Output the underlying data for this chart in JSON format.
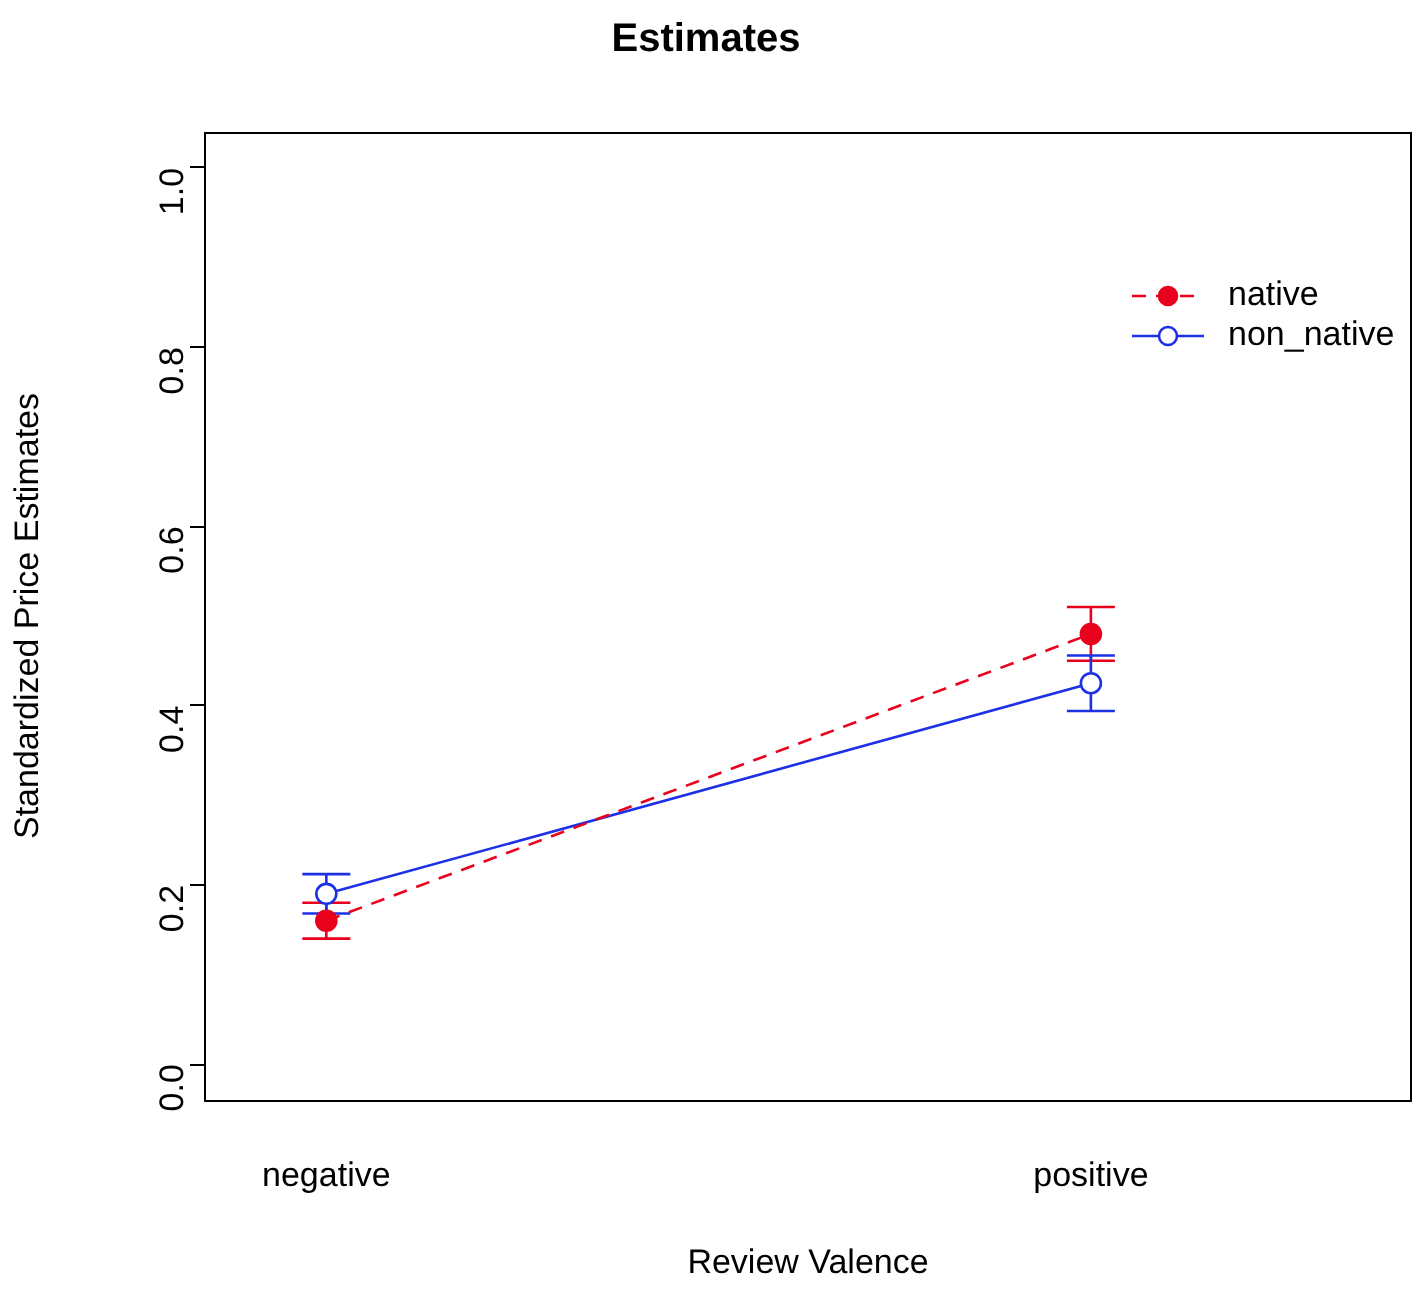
{
  "chart_data": {
    "type": "line",
    "title": "Estimates",
    "xlabel": "Review Valence",
    "ylabel": "Standardized Price Estimates",
    "categories": [
      "negative",
      "positive"
    ],
    "series": [
      {
        "name": "native",
        "color": "#e8001c",
        "values": [
          0.16,
          0.48
        ],
        "errors": [
          0.02,
          0.03
        ],
        "line_style": "dashed",
        "marker": "circle"
      },
      {
        "name": "non_native",
        "color": "#1c30e6",
        "values": [
          0.19,
          0.425
        ],
        "errors": [
          0.022,
          0.031
        ],
        "line_style": "solid",
        "marker": "circle"
      }
    ],
    "ylim": [
      -0.04,
      1.04
    ],
    "yticks": [
      {
        "value": 0,
        "label": "0.0"
      },
      {
        "value": 0.2,
        "label": "0.2"
      },
      {
        "value": 0.4,
        "label": "0.4"
      },
      {
        "value": 0.6,
        "label": "0.6"
      },
      {
        "value": 0.8,
        "label": "0.8"
      },
      {
        "value": 1,
        "label": "1.0"
      }
    ],
    "grid": false,
    "legend": "top right"
  }
}
